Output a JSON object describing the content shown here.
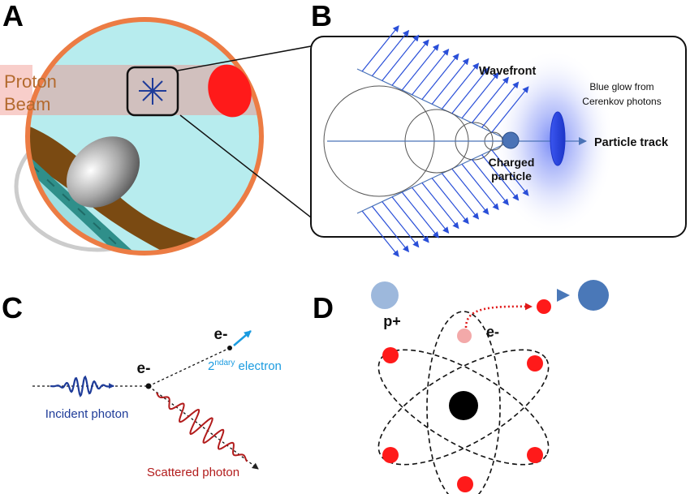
{
  "panels": {
    "a": {
      "letter": "A",
      "beam_line1": "Proton",
      "beam_line2": "Beam"
    },
    "b": {
      "letter": "B",
      "wavefront": "Wavefront",
      "glow_line1": "Blue glow from",
      "glow_line2": "Cerenkov photons",
      "track": "Particle track",
      "charged_line1": "Charged",
      "charged_line2": "particle"
    },
    "c": {
      "letter": "C",
      "electron_top": "e-",
      "electron_mid": "e-",
      "secondary_base": "2",
      "secondary_sup": "ndary",
      "secondary_rest": " electron",
      "incident": "Incident photon",
      "scattered": "Scattered photon"
    },
    "d": {
      "letter": "D",
      "proton": "p+",
      "electron": "e-"
    }
  },
  "colors": {
    "outline_orange": "#ec7c44",
    "tissue_cyan": "#b7ecee",
    "beam_pink": "#f7c9c4",
    "beam_text": "#b36a2e",
    "red": "#ff1a1a",
    "blue_arrows": "#2a4fd8",
    "charged_particle": "#4b73b6",
    "glow_blue": "#3b56f0",
    "incident_blue": "#1f3c99",
    "secondary_blue": "#1a9be0",
    "scattered_red": "#b21c1c",
    "proton_light": "#9db8dc",
    "proton_dark": "#4a78b8",
    "nucleus": "#000000",
    "ejected_electron": "#f3a9a9"
  }
}
